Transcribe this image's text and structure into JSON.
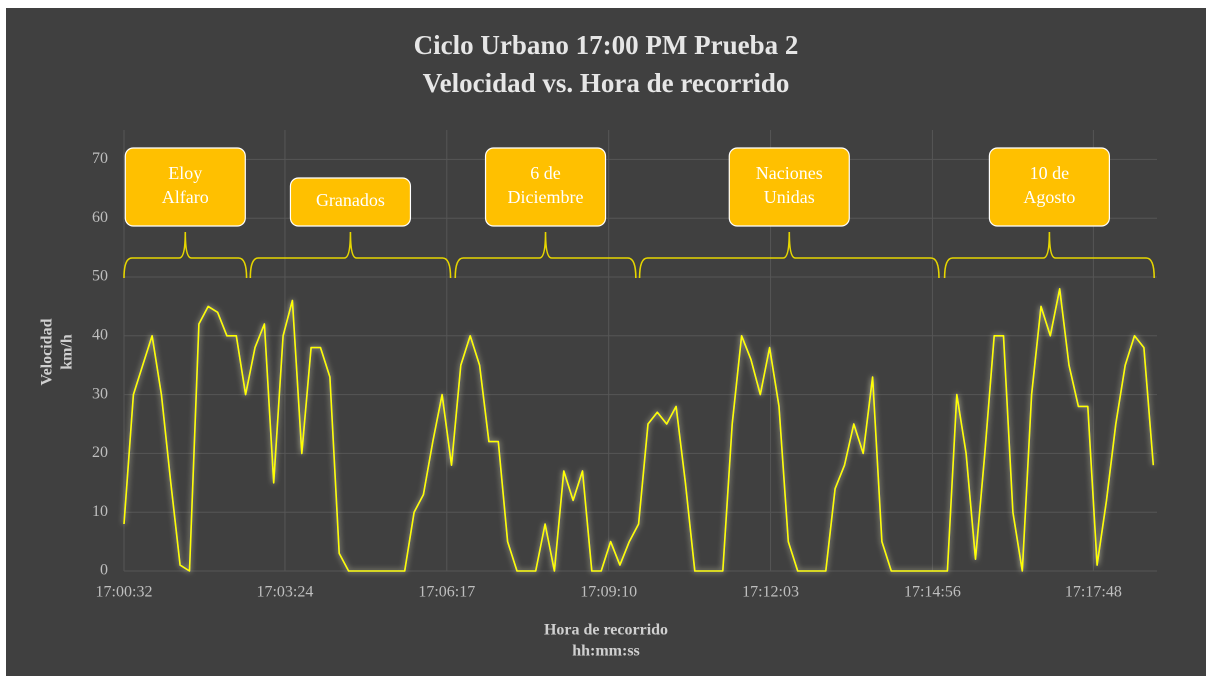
{
  "chart_data": {
    "type": "line",
    "title": [
      "Ciclo Urbano 17:00 PM Prueba 2",
      "Velocidad vs. Hora de recorrido"
    ],
    "ylabel": [
      "Velocidad",
      "km/h"
    ],
    "xlabel": [
      "Hora de recorrido",
      "hh:mm:ss"
    ],
    "color": "#ffff00",
    "grid": true,
    "x": [
      "17:00:32",
      "17:00:42",
      "17:00:52",
      "17:01:02",
      "17:01:12",
      "17:01:22",
      "17:01:32",
      "17:01:42",
      "17:01:52",
      "17:02:02",
      "17:02:12",
      "17:02:22",
      "17:02:32",
      "17:02:42",
      "17:02:52",
      "17:03:02",
      "17:03:12",
      "17:03:22",
      "17:03:32",
      "17:03:42",
      "17:03:52",
      "17:04:02",
      "17:04:12",
      "17:04:22",
      "17:04:32",
      "17:04:42",
      "17:04:52",
      "17:05:02",
      "17:05:12",
      "17:05:22",
      "17:05:32",
      "17:05:42",
      "17:05:52",
      "17:06:02",
      "17:06:12",
      "17:06:22",
      "17:06:32",
      "17:06:42",
      "17:06:52",
      "17:07:02",
      "17:07:12",
      "17:07:22",
      "17:07:32",
      "17:07:42",
      "17:07:52",
      "17:08:02",
      "17:08:12",
      "17:08:22",
      "17:08:32",
      "17:08:42",
      "17:08:52",
      "17:09:02",
      "17:09:12",
      "17:09:22",
      "17:09:32",
      "17:09:42",
      "17:09:52",
      "17:10:02",
      "17:10:12",
      "17:10:22",
      "17:10:32",
      "17:10:42",
      "17:10:52",
      "17:11:02",
      "17:11:12",
      "17:11:22",
      "17:11:32",
      "17:11:42",
      "17:11:52",
      "17:12:02",
      "17:12:12",
      "17:12:22",
      "17:12:32",
      "17:12:42",
      "17:12:52",
      "17:13:02",
      "17:13:12",
      "17:13:22",
      "17:13:32",
      "17:13:42",
      "17:13:52",
      "17:14:02",
      "17:14:12",
      "17:14:22",
      "17:14:32",
      "17:14:42",
      "17:14:52",
      "17:15:02",
      "17:15:12",
      "17:15:22",
      "17:15:32",
      "17:15:42",
      "17:15:52",
      "17:16:02",
      "17:16:12",
      "17:16:22",
      "17:16:32",
      "17:16:42",
      "17:16:52",
      "17:17:02",
      "17:17:12",
      "17:17:22",
      "17:17:32",
      "17:17:42",
      "17:17:52",
      "17:18:02",
      "17:18:12",
      "17:18:22",
      "17:18:32",
      "17:18:42",
      "17:18:52"
    ],
    "values": [
      8,
      30,
      35,
      40,
      30,
      15,
      1,
      0,
      42,
      45,
      44,
      40,
      40,
      30,
      38,
      42,
      15,
      40,
      46,
      20,
      38,
      38,
      33,
      3,
      0,
      0,
      0,
      0,
      0,
      0,
      0,
      10,
      13,
      22,
      30,
      18,
      35,
      40,
      35,
      22,
      22,
      5,
      0,
      0,
      0,
      8,
      0,
      17,
      12,
      17,
      0,
      0,
      5,
      1,
      5,
      8,
      25,
      27,
      25,
      28,
      15,
      0,
      0,
      0,
      0,
      25,
      40,
      36,
      30,
      38,
      28,
      5,
      0,
      0,
      0,
      0,
      14,
      18,
      25,
      20,
      33,
      5,
      0,
      0,
      0,
      0,
      0,
      0,
      0,
      30,
      20,
      2,
      20,
      40,
      40,
      10,
      0,
      30,
      45,
      40,
      48,
      35,
      28,
      28,
      1,
      12,
      25,
      35,
      40,
      38,
      18
    ],
    "xlim": [
      "17:00:32",
      "17:18:56"
    ],
    "xticks": [
      "17:00:32",
      "17:03:24",
      "17:06:17",
      "17:09:10",
      "17:12:03",
      "17:14:56",
      "17:17:48"
    ],
    "ylim": [
      0,
      75
    ],
    "yticks": [
      0,
      10,
      20,
      30,
      40,
      50,
      60,
      70
    ],
    "annotations": [
      {
        "lines": [
          "Eloy",
          "Alfaro"
        ],
        "start": "17:00:32",
        "end": "17:02:43"
      },
      {
        "lines": [
          "Granados"
        ],
        "start": "17:02:47",
        "end": "17:06:21"
      },
      {
        "lines": [
          "6 de",
          "Diciembre"
        ],
        "start": "17:06:26",
        "end": "17:09:39"
      },
      {
        "lines": [
          "Naciones",
          "Unidas"
        ],
        "start": "17:09:43",
        "end": "17:15:03"
      },
      {
        "lines": [
          "10 de",
          "Agosto"
        ],
        "start": "17:15:09",
        "end": "17:18:53"
      }
    ]
  }
}
